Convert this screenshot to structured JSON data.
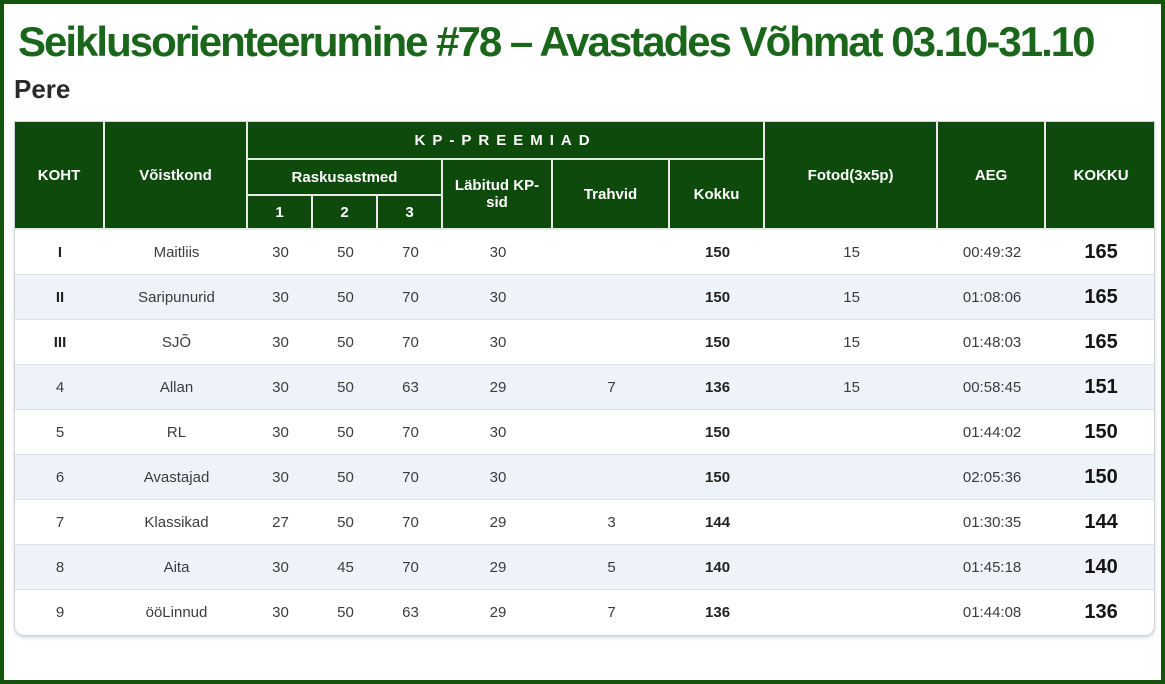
{
  "page": {
    "title": "Seiklusorienteerumine #78 – Avastades Võhmat 03.10-31.10",
    "subtitle": "Pere"
  },
  "colors": {
    "frame_green": "#15530f",
    "header_green": "#0e4a0c",
    "title_green": "#1a661a",
    "stripe_blue": "#eef3f9"
  },
  "table": {
    "headers": {
      "koht": "KOHT",
      "voistkond": "Võistkond",
      "kp_preemiad": "KP-PREEMIAD",
      "raskusastmed": "Raskusastmed",
      "level1": "1",
      "level2": "2",
      "level3": "3",
      "labitud": "Läbitud KP-sid",
      "trahvid": "Trahvid",
      "kokku": "Kokku",
      "fotod": "Fotod(3x5p)",
      "aeg": "AEG",
      "kokku_final": "KOKKU"
    },
    "rows": [
      {
        "koht": "I",
        "voistkond": "Maitliis",
        "r1": "30",
        "r2": "50",
        "r3": "70",
        "labitud": "30",
        "trahvid": "",
        "kokku": "150",
        "fotod": "15",
        "aeg": "00:49:32",
        "total": "165"
      },
      {
        "koht": "II",
        "voistkond": "Saripunurid",
        "r1": "30",
        "r2": "50",
        "r3": "70",
        "labitud": "30",
        "trahvid": "",
        "kokku": "150",
        "fotod": "15",
        "aeg": "01:08:06",
        "total": "165"
      },
      {
        "koht": "III",
        "voistkond": "SJÕ",
        "r1": "30",
        "r2": "50",
        "r3": "70",
        "labitud": "30",
        "trahvid": "",
        "kokku": "150",
        "fotod": "15",
        "aeg": "01:48:03",
        "total": "165"
      },
      {
        "koht": "4",
        "voistkond": "Allan",
        "r1": "30",
        "r2": "50",
        "r3": "63",
        "labitud": "29",
        "trahvid": "7",
        "kokku": "136",
        "fotod": "15",
        "aeg": "00:58:45",
        "total": "151"
      },
      {
        "koht": "5",
        "voistkond": "RL",
        "r1": "30",
        "r2": "50",
        "r3": "70",
        "labitud": "30",
        "trahvid": "",
        "kokku": "150",
        "fotod": "",
        "aeg": "01:44:02",
        "total": "150"
      },
      {
        "koht": "6",
        "voistkond": "Avastajad",
        "r1": "30",
        "r2": "50",
        "r3": "70",
        "labitud": "30",
        "trahvid": "",
        "kokku": "150",
        "fotod": "",
        "aeg": "02:05:36",
        "total": "150"
      },
      {
        "koht": "7",
        "voistkond": "Klassikad",
        "r1": "27",
        "r2": "50",
        "r3": "70",
        "labitud": "29",
        "trahvid": "3",
        "kokku": "144",
        "fotod": "",
        "aeg": "01:30:35",
        "total": "144"
      },
      {
        "koht": "8",
        "voistkond": "Aita",
        "r1": "30",
        "r2": "45",
        "r3": "70",
        "labitud": "29",
        "trahvid": "5",
        "kokku": "140",
        "fotod": "",
        "aeg": "01:45:18",
        "total": "140"
      },
      {
        "koht": "9",
        "voistkond": "ööLinnud",
        "r1": "30",
        "r2": "50",
        "r3": "63",
        "labitud": "29",
        "trahvid": "7",
        "kokku": "136",
        "fotod": "",
        "aeg": "01:44:08",
        "total": "136"
      }
    ]
  }
}
